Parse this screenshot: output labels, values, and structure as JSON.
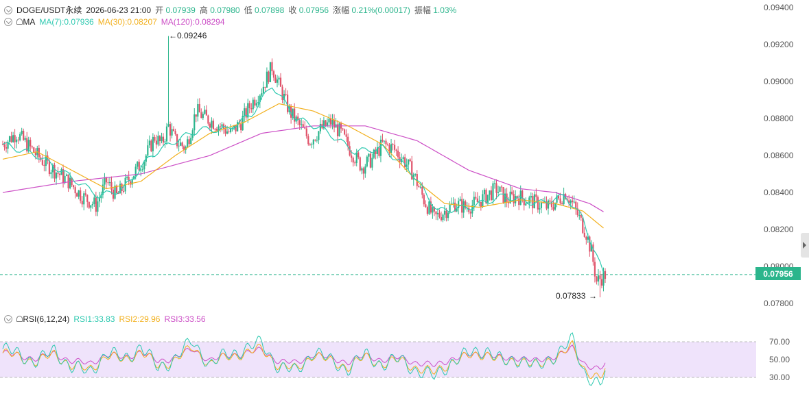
{
  "header": {
    "symbol": "DOGE/USDT永续",
    "datetime": "2026-06-23 21:00",
    "open_label": "开",
    "open": "0.07939",
    "high_label": "高",
    "high": "0.07980",
    "low_label": "低",
    "low": "0.07898",
    "close_label": "收",
    "close": "0.07956",
    "change_label": "涨幅",
    "change": "0.21%(0.00017)",
    "amp_label": "振幅",
    "amp": "1.03%"
  },
  "ma_legend": {
    "label": "MA",
    "ma7": "MA(7):0.07936",
    "ma30": "MA(30):0.08207",
    "ma120": "MA(120):0.08294"
  },
  "rsi_legend": {
    "label": "RSI(6,12,24)",
    "rsi1": "RSI1:33.83",
    "rsi2": "RSI2:29.96",
    "rsi3": "RSI3:33.56"
  },
  "price_tag": "0.07956",
  "annotations": {
    "high": "0.09246",
    "low": "0.07833"
  },
  "colors": {
    "up": "#2bb58c",
    "down": "#e0536a",
    "ma7": "#2ec9b0",
    "ma30": "#f2b01e",
    "ma120": "#cc4fc6",
    "rsi_band": "#efe3fb",
    "grid": "#999999"
  },
  "chart_data": [
    {
      "type": "candlestick",
      "title": "DOGE/USDT永续",
      "ylim": [
        0.0775,
        0.0945
      ],
      "y_ticks": [
        "0.09400",
        "0.09200",
        "0.09000",
        "0.08800",
        "0.08600",
        "0.08400",
        "0.08200",
        "0.08000",
        "0.07800"
      ],
      "last_price": 0.07956,
      "annotated_high": 0.09246,
      "annotated_low": 0.07833,
      "close_path": [
        [
          0,
          0.0866
        ],
        [
          8,
          0.0872
        ],
        [
          15,
          0.0865
        ],
        [
          22,
          0.0858
        ],
        [
          30,
          0.0852
        ],
        [
          38,
          0.0846
        ],
        [
          46,
          0.0838
        ],
        [
          54,
          0.0833
        ],
        [
          60,
          0.0846
        ],
        [
          66,
          0.0838
        ],
        [
          74,
          0.0848
        ],
        [
          82,
          0.0858
        ],
        [
          88,
          0.087
        ],
        [
          92,
          0.0866
        ],
        [
          96,
          0.0876
        ],
        [
          100,
          0.0868
        ],
        [
          106,
          0.0864
        ],
        [
          112,
          0.0884
        ],
        [
          118,
          0.088
        ],
        [
          126,
          0.0876
        ],
        [
          132,
          0.0872
        ],
        [
          138,
          0.0878
        ],
        [
          144,
          0.0888
        ],
        [
          150,
          0.0896
        ],
        [
          156,
          0.0908
        ],
        [
          160,
          0.0898
        ],
        [
          166,
          0.0884
        ],
        [
          172,
          0.0876
        ],
        [
          178,
          0.0868
        ],
        [
          184,
          0.0874
        ],
        [
          190,
          0.0878
        ],
        [
          196,
          0.0872
        ],
        [
          202,
          0.0862
        ],
        [
          208,
          0.0854
        ],
        [
          214,
          0.0858
        ],
        [
          220,
          0.0866
        ],
        [
          226,
          0.0864
        ],
        [
          232,
          0.0858
        ],
        [
          238,
          0.085
        ],
        [
          244,
          0.0836
        ],
        [
          250,
          0.0826
        ],
        [
          256,
          0.083
        ],
        [
          262,
          0.0834
        ],
        [
          268,
          0.0832
        ],
        [
          274,
          0.0834
        ],
        [
          280,
          0.0838
        ],
        [
          286,
          0.0842
        ],
        [
          292,
          0.0836
        ],
        [
          298,
          0.0838
        ],
        [
          304,
          0.0836
        ],
        [
          310,
          0.0834
        ],
        [
          316,
          0.0832
        ],
        [
          322,
          0.0836
        ],
        [
          326,
          0.084
        ],
        [
          330,
          0.0834
        ],
        [
          334,
          0.0826
        ],
        [
          338,
          0.0818
        ],
        [
          341,
          0.0808
        ],
        [
          344,
          0.0792
        ],
        [
          347,
          0.0794
        ],
        [
          349,
          0.07956
        ]
      ],
      "ma7_path": [
        [
          0,
          0.0866
        ],
        [
          20,
          0.086
        ],
        [
          40,
          0.0848
        ],
        [
          56,
          0.0838
        ],
        [
          70,
          0.0842
        ],
        [
          86,
          0.086
        ],
        [
          100,
          0.0868
        ],
        [
          114,
          0.0874
        ],
        [
          130,
          0.0874
        ],
        [
          144,
          0.0882
        ],
        [
          156,
          0.0898
        ],
        [
          170,
          0.088
        ],
        [
          186,
          0.0874
        ],
        [
          204,
          0.0862
        ],
        [
          220,
          0.0864
        ],
        [
          236,
          0.0852
        ],
        [
          252,
          0.083
        ],
        [
          270,
          0.0832
        ],
        [
          290,
          0.0838
        ],
        [
          310,
          0.0834
        ],
        [
          326,
          0.0838
        ],
        [
          336,
          0.0826
        ],
        [
          342,
          0.081
        ],
        [
          349,
          0.0794
        ]
      ],
      "ma30_path": [
        [
          0,
          0.0858
        ],
        [
          20,
          0.0862
        ],
        [
          40,
          0.0852
        ],
        [
          60,
          0.0842
        ],
        [
          80,
          0.0846
        ],
        [
          100,
          0.086
        ],
        [
          120,
          0.0872
        ],
        [
          140,
          0.0878
        ],
        [
          160,
          0.0888
        ],
        [
          180,
          0.0884
        ],
        [
          200,
          0.0876
        ],
        [
          220,
          0.0866
        ],
        [
          240,
          0.0846
        ],
        [
          256,
          0.0834
        ],
        [
          276,
          0.0832
        ],
        [
          300,
          0.0836
        ],
        [
          320,
          0.0834
        ],
        [
          336,
          0.083
        ],
        [
          349,
          0.082
        ]
      ],
      "ma120_path": [
        [
          0,
          0.084
        ],
        [
          40,
          0.0846
        ],
        [
          80,
          0.085
        ],
        [
          120,
          0.086
        ],
        [
          150,
          0.0872
        ],
        [
          180,
          0.0876
        ],
        [
          210,
          0.0876
        ],
        [
          240,
          0.0868
        ],
        [
          270,
          0.0852
        ],
        [
          300,
          0.0842
        ],
        [
          320,
          0.084
        ],
        [
          340,
          0.0834
        ],
        [
          349,
          0.0829
        ]
      ]
    },
    {
      "type": "line",
      "title": "RSI(6,12,24)",
      "ylim": [
        20,
        80
      ],
      "y_ticks": [
        "70.00",
        "50.00",
        "30.00"
      ],
      "band": [
        30,
        70
      ],
      "series": [
        {
          "name": "RSI1",
          "color": "#2ec9b0",
          "last": 33.83
        },
        {
          "name": "RSI2",
          "color": "#f2b01e",
          "last": 29.96
        },
        {
          "name": "RSI3",
          "color": "#cc4fc6",
          "last": 33.56
        }
      ],
      "rsi1_path": [
        [
          0,
          62
        ],
        [
          10,
          55
        ],
        [
          20,
          48
        ],
        [
          30,
          60
        ],
        [
          40,
          42
        ],
        [
          50,
          35
        ],
        [
          60,
          58
        ],
        [
          70,
          50
        ],
        [
          80,
          65
        ],
        [
          90,
          40
        ],
        [
          100,
          52
        ],
        [
          110,
          70
        ],
        [
          120,
          45
        ],
        [
          130,
          55
        ],
        [
          140,
          62
        ],
        [
          150,
          68
        ],
        [
          160,
          42
        ],
        [
          170,
          36
        ],
        [
          180,
          60
        ],
        [
          190,
          48
        ],
        [
          200,
          40
        ],
        [
          210,
          55
        ],
        [
          220,
          45
        ],
        [
          230,
          50
        ],
        [
          240,
          38
        ],
        [
          250,
          30
        ],
        [
          260,
          48
        ],
        [
          270,
          56
        ],
        [
          280,
          62
        ],
        [
          290,
          46
        ],
        [
          300,
          52
        ],
        [
          310,
          40
        ],
        [
          320,
          56
        ],
        [
          330,
          72
        ],
        [
          336,
          38
        ],
        [
          342,
          28
        ],
        [
          346,
          22
        ],
        [
          349,
          34
        ]
      ]
    }
  ]
}
